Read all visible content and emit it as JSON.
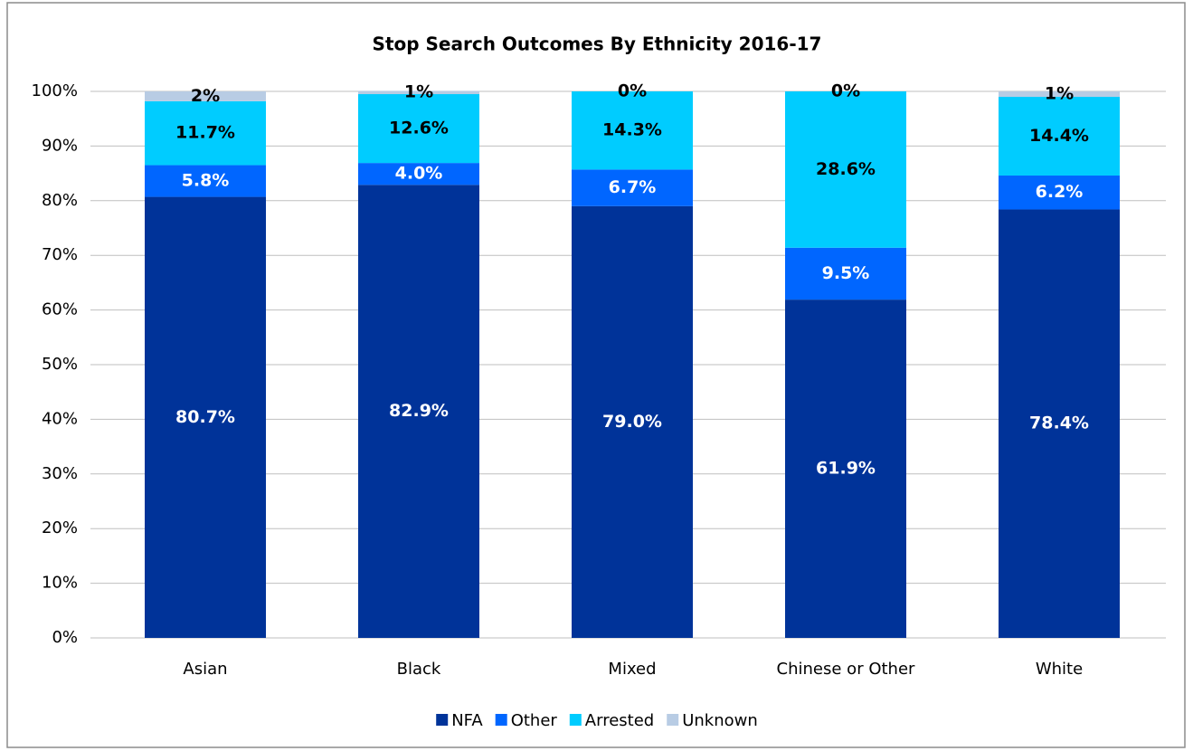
{
  "chart_data": {
    "type": "stacked_bar",
    "title": "Stop Search Outcomes By Ethnicity 2016-17",
    "categories": [
      "Asian",
      "Black",
      "Mixed",
      "Chinese or Other",
      "White"
    ],
    "series": [
      {
        "name": "NFA",
        "color": "#003399",
        "label_color": "#ffffff",
        "values": [
          80.7,
          82.9,
          79.0,
          61.9,
          78.4
        ],
        "value_labels": [
          "80.7%",
          "82.9%",
          "79.0%",
          "61.9%",
          "78.4%"
        ]
      },
      {
        "name": "Other",
        "color": "#0066ff",
        "label_color": "#ffffff",
        "values": [
          5.8,
          4.0,
          6.7,
          9.5,
          6.2
        ],
        "value_labels": [
          "5.8%",
          "4.0%",
          "6.7%",
          "9.5%",
          "6.2%"
        ]
      },
      {
        "name": "Arrested",
        "color": "#00ccff",
        "label_color": "#000000",
        "values": [
          11.7,
          12.6,
          14.3,
          28.6,
          14.4
        ],
        "value_labels": [
          "11.7%",
          "12.6%",
          "14.3%",
          "28.6%",
          "14.4%"
        ]
      },
      {
        "name": "Unknown",
        "color": "#b8cce4",
        "label_color": "#000000",
        "values": [
          1.8,
          0.6,
          0,
          0,
          1.0
        ],
        "value_labels": [
          "2%",
          "1%",
          "0%",
          "0%",
          "1%"
        ]
      }
    ],
    "ylim": [
      0,
      100
    ],
    "yticks": [
      {
        "value": 0,
        "label": "0%"
      },
      {
        "value": 10,
        "label": "10%"
      },
      {
        "value": 20,
        "label": "20%"
      },
      {
        "value": 30,
        "label": "30%"
      },
      {
        "value": 40,
        "label": "40%"
      },
      {
        "value": 50,
        "label": "50%"
      },
      {
        "value": 60,
        "label": "60%"
      },
      {
        "value": 70,
        "label": "70%"
      },
      {
        "value": 80,
        "label": "80%"
      },
      {
        "value": 90,
        "label": "90%"
      },
      {
        "value": 100,
        "label": "100%"
      }
    ],
    "grid": true,
    "legend": "bottom"
  }
}
